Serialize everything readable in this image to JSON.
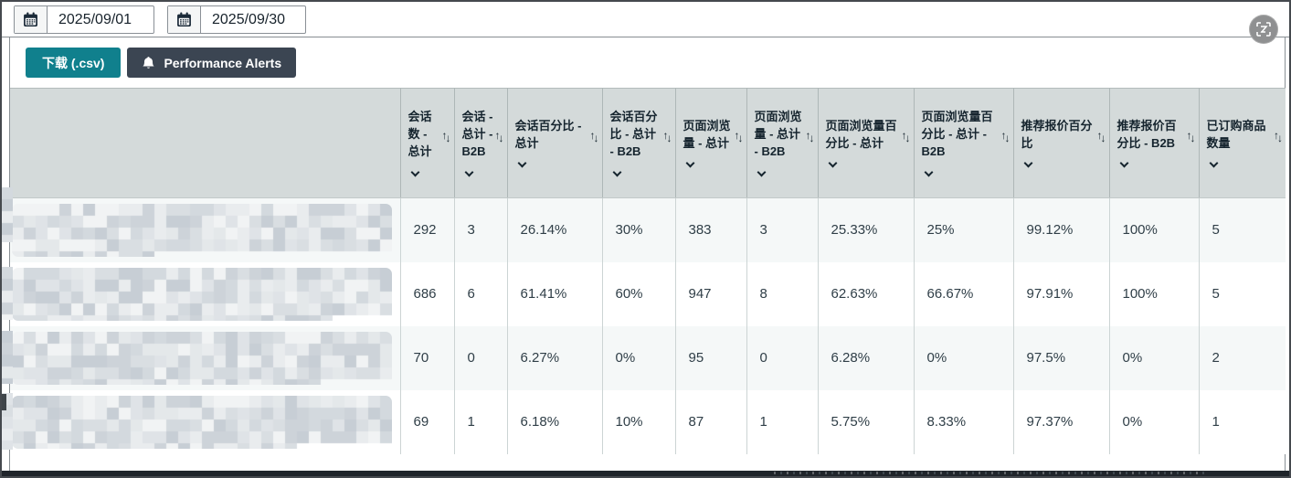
{
  "topbar": {
    "start_date": "2025/09/01",
    "end_date": "2025/09/30"
  },
  "actions": {
    "download_label": "下载 (.csv)",
    "alerts_label": "Performance Alerts"
  },
  "table": {
    "columns": [
      "会话数 - 总计",
      "会话 - 总计 - B2B",
      "会话百分比 - 总计",
      "会话百分比 - 总计 - B2B",
      "页面浏览量 - 总计",
      "页面浏览量 - 总计 - B2B",
      "页面浏览量百分比 - 总计",
      "页面浏览量百分比 - 总计 - B2B",
      "推荐报价百分比",
      "推荐报价百分比 - B2B",
      "已订购商品数量"
    ],
    "rows": [
      [
        "292",
        "3",
        "26.14%",
        "30%",
        "383",
        "3",
        "25.33%",
        "25%",
        "99.12%",
        "100%",
        "5"
      ],
      [
        "686",
        "6",
        "61.41%",
        "60%",
        "947",
        "8",
        "62.63%",
        "66.67%",
        "97.91%",
        "100%",
        "5"
      ],
      [
        "70",
        "0",
        "6.27%",
        "0%",
        "95",
        "0",
        "6.28%",
        "0%",
        "97.5%",
        "0%",
        "2"
      ],
      [
        "69",
        "1",
        "6.18%",
        "10%",
        "87",
        "1",
        "5.75%",
        "8.33%",
        "97.37%",
        "0%",
        "1"
      ]
    ]
  },
  "colors": {
    "accent_teal": "#10808d",
    "dark_button": "#3b4552",
    "header_bg": "#d4dada",
    "row_tint": "#f5f8f8",
    "header_text": "#15242e"
  }
}
